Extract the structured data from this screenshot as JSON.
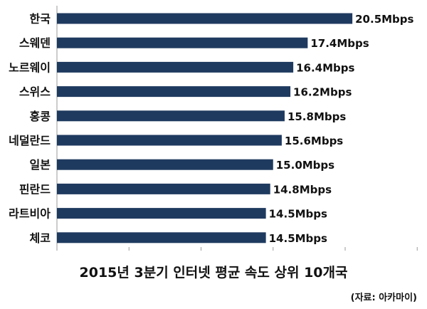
{
  "chart_data": {
    "type": "bar",
    "orientation": "horizontal",
    "title": "2015년 3분기 인터넷 평균 속도 상위 10개국",
    "source": "(자료: 아카마이)",
    "categories": [
      "한국",
      "스웨덴",
      "노르웨이",
      "스위스",
      "홍콩",
      "네덜란드",
      "일본",
      "핀란드",
      "라트비아",
      "체코"
    ],
    "values": [
      20.5,
      17.4,
      16.4,
      16.2,
      15.8,
      15.6,
      15.0,
      14.8,
      14.5,
      14.5
    ],
    "value_labels": [
      "20.5Mbps",
      "17.4Mbps",
      "16.4Mbps",
      "16.2Mbps",
      "15.8Mbps",
      "15.6Mbps",
      "15.0Mbps",
      "14.8Mbps",
      "14.5Mbps",
      "14.5Mbps"
    ],
    "unit": "Mbps",
    "xlim": [
      0,
      25
    ],
    "grid": false,
    "legend": "none",
    "bar_color": "#1f3a5f"
  }
}
